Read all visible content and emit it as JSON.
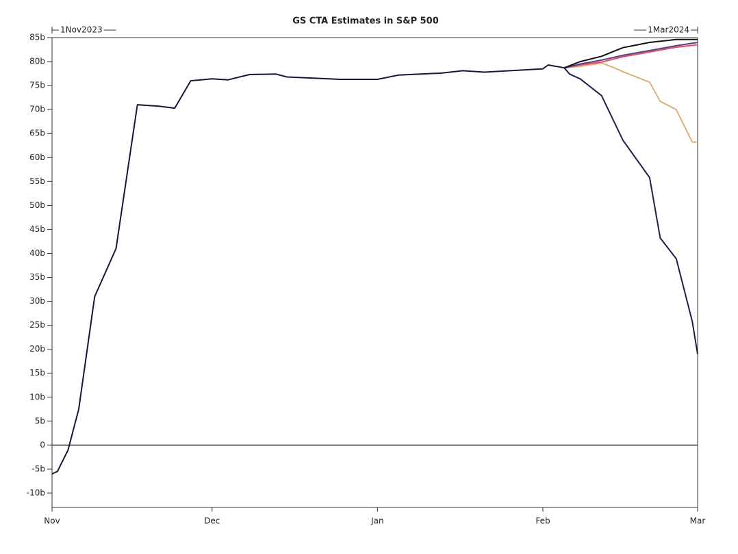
{
  "chart_data": {
    "type": "line",
    "title": "GS CTA Estimates in S&P 500",
    "annotations": [
      "1Nov2023",
      "1Mar2024"
    ],
    "xlim": [
      "2023-11-01",
      "2024-03-01"
    ],
    "xticks": [
      {
        "value": "2023-11-01",
        "label": "Nov"
      },
      {
        "value": "2023-12-01",
        "label": "Dec"
      },
      {
        "value": "2024-01-01",
        "label": "Jan"
      },
      {
        "value": "2024-02-01",
        "label": "Feb"
      },
      {
        "value": "2024-03-01",
        "label": "Mar"
      }
    ],
    "ylim": [
      -13,
      85
    ],
    "yticks": [
      {
        "value": 85,
        "label": "85b"
      },
      {
        "value": 80,
        "label": "80b"
      },
      {
        "value": 75,
        "label": "75b"
      },
      {
        "value": 70,
        "label": "70b"
      },
      {
        "value": 65,
        "label": "65b"
      },
      {
        "value": 60,
        "label": "60b"
      },
      {
        "value": 55,
        "label": "55b"
      },
      {
        "value": 50,
        "label": "50b"
      },
      {
        "value": 45,
        "label": "45b"
      },
      {
        "value": 40,
        "label": "40b"
      },
      {
        "value": 35,
        "label": "35b"
      },
      {
        "value": 30,
        "label": "30b"
      },
      {
        "value": 25,
        "label": "25b"
      },
      {
        "value": 20,
        "label": "20b"
      },
      {
        "value": 15,
        "label": "15b"
      },
      {
        "value": 10,
        "label": "10b"
      },
      {
        "value": 5,
        "label": "5b"
      },
      0,
      {
        "value": -5,
        "label": "-5b"
      },
      {
        "value": -10,
        "label": "-10b"
      }
    ],
    "zero_line": true,
    "series": [
      {
        "color": "#16163a",
        "x": [
          "2023-11-01",
          "2023-11-02",
          "2023-11-04",
          "2023-11-06",
          "2023-11-09",
          "2023-11-13",
          "2023-11-17",
          "2023-11-21",
          "2023-11-24",
          "2023-11-27",
          "2023-12-01",
          "2023-12-04",
          "2023-12-08",
          "2023-12-13",
          "2023-12-15",
          "2023-12-25",
          "2024-01-01",
          "2024-01-05",
          "2024-01-13",
          "2024-01-17",
          "2024-01-21",
          "2024-01-29",
          "2024-02-01",
          "2024-02-02",
          "2024-02-05"
        ],
        "values": [
          -6,
          -5.5,
          -1,
          7.5,
          31,
          41,
          71,
          70.7,
          70.3,
          76,
          76.4,
          76.2,
          77.3,
          77.4,
          76.8,
          76.3,
          76.3,
          77.2,
          77.6,
          78.1,
          77.8,
          78.3,
          78.5,
          79.3,
          78.7
        ]
      },
      {
        "color": "#d8b27a",
        "x": [
          "2024-02-05",
          "2024-02-08",
          "2024-02-12",
          "2024-02-14",
          "2024-02-16",
          "2024-02-21",
          "2024-02-23",
          "2024-02-26",
          "2024-02-29",
          "2024-03-01"
        ],
        "values": [
          78.7,
          79,
          79.7,
          78.9,
          77.9,
          75.7,
          71.7,
          70,
          63.2,
          63.2
        ]
      },
      {
        "color": "#e05060",
        "x": [
          "2024-02-05",
          "2024-02-08",
          "2024-02-12",
          "2024-02-16",
          "2024-02-21",
          "2024-02-26",
          "2024-03-01"
        ],
        "values": [
          78.7,
          79.3,
          79.9,
          81,
          82,
          83,
          83.5
        ]
      },
      {
        "color": "#5a3c8c",
        "x": [
          "2024-02-05",
          "2024-02-08",
          "2024-02-12",
          "2024-02-16",
          "2024-02-21",
          "2024-02-26",
          "2024-03-01"
        ],
        "values": [
          78.7,
          79.5,
          80.3,
          81.3,
          82.3,
          83.3,
          84
        ]
      },
      {
        "color": "#111111",
        "x": [
          "2024-02-05",
          "2024-02-08",
          "2024-02-12",
          "2024-02-16",
          "2024-02-21",
          "2024-02-26",
          "2024-03-01"
        ],
        "values": [
          78.7,
          80,
          81.1,
          82.9,
          84,
          84.6,
          84.6
        ]
      },
      {
        "color": "#1b1f4a",
        "x": [
          "2024-02-05",
          "2024-02-06",
          "2024-02-08",
          "2024-02-12",
          "2024-02-16",
          "2024-02-21",
          "2024-02-23",
          "2024-02-26",
          "2024-02-29",
          "2024-03-01"
        ],
        "values": [
          78.7,
          77.4,
          76.4,
          72.9,
          63.6,
          55.8,
          43.2,
          38.9,
          25.8,
          19
        ]
      }
    ]
  }
}
